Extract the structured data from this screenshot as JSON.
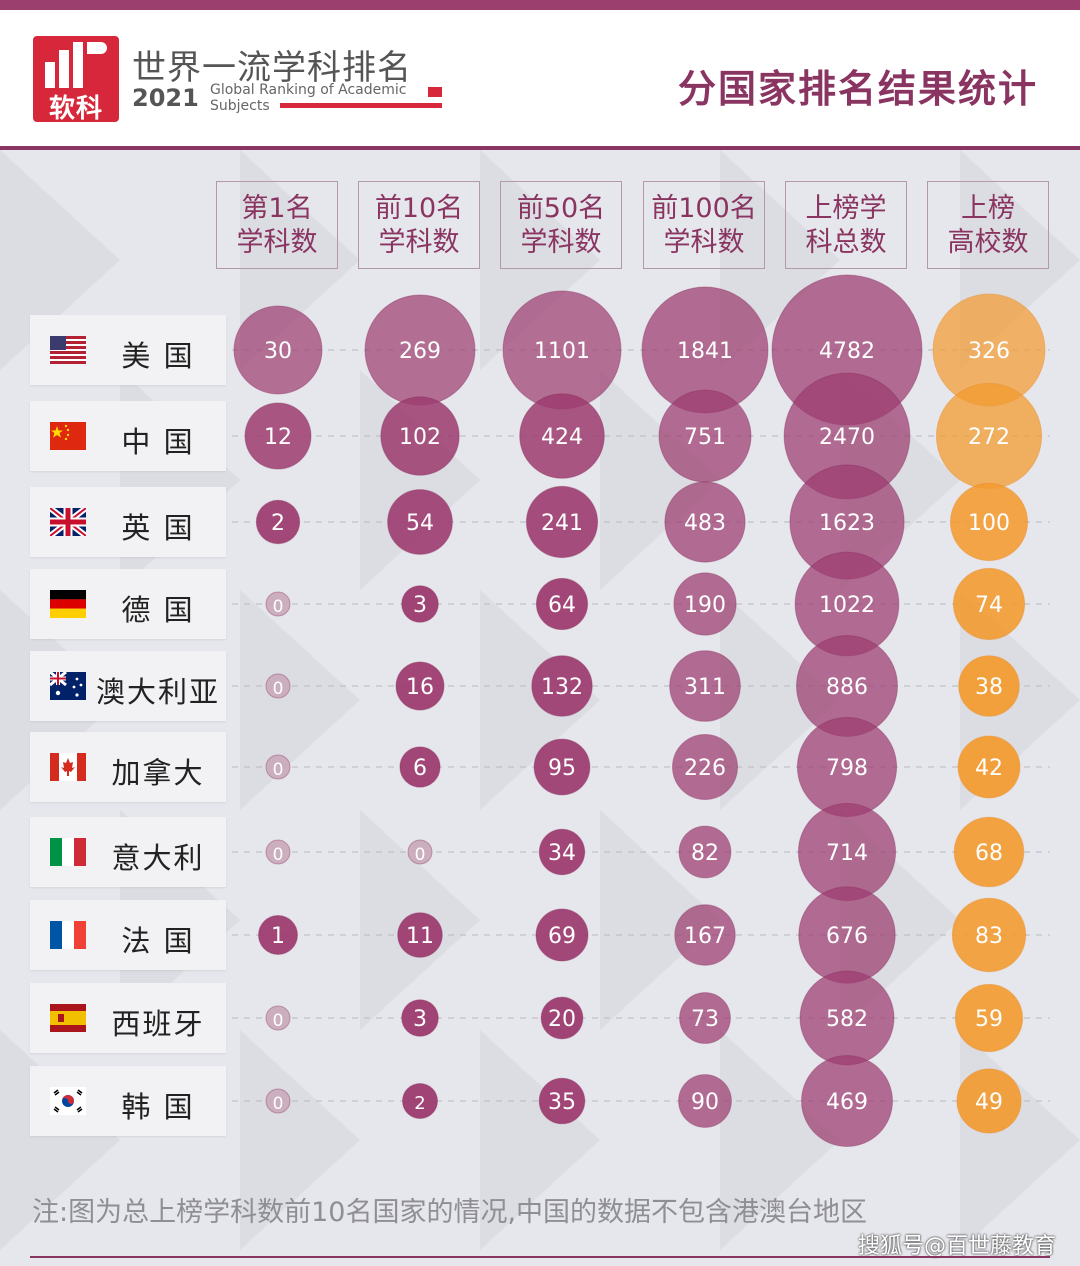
{
  "brand": {
    "logo_text": "软科",
    "title": "世界一流学科排名",
    "year": "2021",
    "subtitle": "Global Ranking of Academic\nSubjects"
  },
  "page_title": "分国家排名结果统计",
  "chart_data": {
    "type": "bubble-table",
    "columns": [
      "第1名\n学科数",
      "前10名\n学科数",
      "前50名\n学科数",
      "前100名\n学科数",
      "上榜学\n科总数",
      "上榜\n高校数"
    ],
    "rows": [
      {
        "name": "美 国",
        "flag": "us-flag-icon",
        "values": [
          30,
          269,
          1101,
          1841,
          4782,
          326
        ]
      },
      {
        "name": "中 国",
        "flag": "china-flag-icon",
        "values": [
          12,
          102,
          424,
          751,
          2470,
          272
        ]
      },
      {
        "name": "英 国",
        "flag": "uk-flag-icon",
        "values": [
          2,
          54,
          241,
          483,
          1623,
          100
        ]
      },
      {
        "name": "德 国",
        "flag": "germany-flag-icon",
        "values": [
          0,
          3,
          64,
          190,
          1022,
          74
        ]
      },
      {
        "name": "澳大利亚",
        "flag": "australia-flag-icon",
        "values": [
          0,
          16,
          132,
          311,
          886,
          38
        ]
      },
      {
        "name": "加拿大",
        "flag": "canada-flag-icon",
        "values": [
          0,
          6,
          95,
          226,
          798,
          42
        ]
      },
      {
        "name": "意大利",
        "flag": "italy-flag-icon",
        "values": [
          0,
          0,
          34,
          82,
          714,
          68
        ]
      },
      {
        "name": "法 国",
        "flag": "france-flag-icon",
        "values": [
          1,
          11,
          69,
          167,
          676,
          83
        ]
      },
      {
        "name": "西班牙",
        "flag": "spain-flag-icon",
        "values": [
          0,
          3,
          20,
          73,
          582,
          59
        ]
      },
      {
        "name": "韩 国",
        "flag": "korea-flag-icon",
        "values": [
          0,
          2,
          35,
          90,
          469,
          49
        ]
      }
    ],
    "colors": {
      "purple_bubble": "#9c3b6f",
      "orange_bubble": "#f39a2e",
      "zero_bubble": "#c9a9ba"
    }
  },
  "note": "注:图为总上榜学科数前10名国家的情况,中国的数据不包含港澳台地区",
  "watermark": "搜狐号@百世藤教育"
}
